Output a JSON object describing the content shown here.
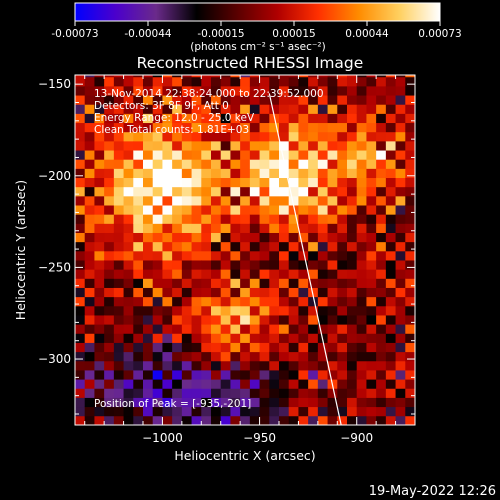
{
  "colorbar": {
    "ticks": [
      "-0.00073",
      "-0.00044",
      "-0.00015",
      "0.00015",
      "0.00044",
      "0.00073"
    ],
    "unit_label": "(photons cm⁻² s⁻¹ asec⁻²)",
    "colors": [
      "#0000ff",
      "#4b00cc",
      "#6a2a8a",
      "#000000",
      "#5a0000",
      "#b00000",
      "#ff3000",
      "#ff8c00",
      "#ffd060",
      "#ffffff"
    ]
  },
  "chart_data": {
    "type": "heatmap",
    "title": "Reconstructed RHESSI Image",
    "xlabel": "Heliocentric X (arcsec)",
    "ylabel": "Heliocentric Y (arcsec)",
    "xlim": [
      -1045,
      -870
    ],
    "ylim": [
      -336,
      -145
    ],
    "xticks": [
      -1000,
      -950,
      -900
    ],
    "xtick_labels": [
      "−1000",
      "−950",
      "−900"
    ],
    "yticks": [
      -150,
      -200,
      -250,
      -300
    ],
    "ytick_labels": [
      "−150",
      "−200",
      "−250",
      "−300"
    ],
    "value_range": [
      -0.00073,
      0.00073
    ],
    "peak_position": [
      -935,
      -201
    ],
    "limb_line": [
      [
        -945,
        -155
      ],
      [
        -908,
        -336
      ]
    ],
    "sources": [
      {
        "x": -1000,
        "y": -205,
        "rx": 32,
        "ry": 35,
        "amplitude": 0.00072
      },
      {
        "x": -935,
        "y": -201,
        "rx": 22,
        "ry": 26,
        "amplitude": 0.00073
      },
      {
        "x": -965,
        "y": -283,
        "rx": 22,
        "ry": 22,
        "amplitude": 0.00055
      },
      {
        "x": -895,
        "y": -190,
        "rx": 22,
        "ry": 22,
        "amplitude": 0.0004
      }
    ],
    "negative_region": {
      "x": -990,
      "y": -318,
      "rx": 50,
      "ry": 28,
      "amplitude": -0.00045
    },
    "annotations": [
      "13-Nov-2014 22:38:24.000 to 22:39:52.000",
      "Detectors: 3F 8F 9F, Att 0",
      "Energy Range: 12.0 - 25.0 keV",
      "Clean     Total counts: 1.81E+03"
    ],
    "peak_label": "Position of Peak = [-935,-201]"
  },
  "footer": {
    "timestamp": "19-May-2022 12:26"
  }
}
